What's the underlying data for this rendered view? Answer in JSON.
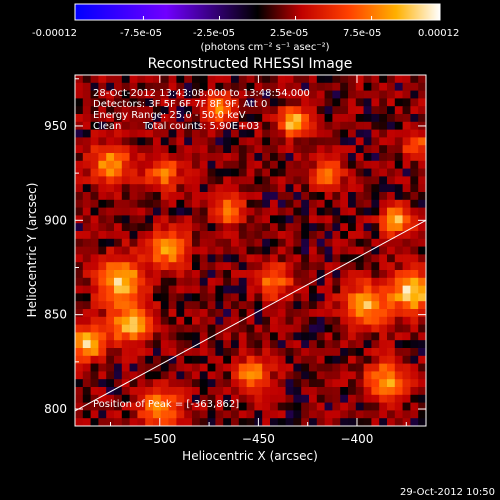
{
  "colorbar": {
    "tick_labels": [
      "-0.00012",
      "-7.5e-05",
      "-2.5e-05",
      "2.5e-05",
      "7.5e-05",
      "0.00012"
    ],
    "tick_values": [
      -0.00012,
      -7.5e-05,
      -2.5e-05,
      2.5e-05,
      7.5e-05,
      0.00012
    ],
    "unit_label": "(photons cm⁻² s⁻¹ asec⁻²)",
    "colors": [
      "#0000ff",
      "#8000ff",
      "#000000",
      "#c00000",
      "#ff4000",
      "#ffb000",
      "#ffffff"
    ]
  },
  "chart_data": {
    "type": "heatmap",
    "title": "Reconstructed RHESSI Image",
    "xlabel": "Heliocentric X (arcsec)",
    "ylabel": "Heliocentric Y (arcsec)",
    "xlim": [
      -543,
      -365
    ],
    "ylim": [
      791,
      977
    ],
    "x_ticks": [
      -500,
      -450,
      -400
    ],
    "x_tick_labels": [
      "−500",
      "−450",
      "−400"
    ],
    "y_ticks": [
      800,
      850,
      900,
      950
    ],
    "y_tick_labels": [
      "800",
      "850",
      "900",
      "950"
    ],
    "limb_line": [
      [
        -543,
        799
      ],
      [
        -365,
        900
      ]
    ],
    "peak": [
      -363,
      862
    ],
    "blobs": [
      {
        "x": -537,
        "y": 835,
        "amp": 0.95,
        "sigma": 6
      },
      {
        "x": -520,
        "y": 868,
        "amp": 0.9,
        "sigma": 8
      },
      {
        "x": -515,
        "y": 845,
        "amp": 0.85,
        "sigma": 7
      },
      {
        "x": -525,
        "y": 930,
        "amp": 0.75,
        "sigma": 7
      },
      {
        "x": -498,
        "y": 925,
        "amp": 0.6,
        "sigma": 6
      },
      {
        "x": -500,
        "y": 800,
        "amp": 0.75,
        "sigma": 7
      },
      {
        "x": -496,
        "y": 885,
        "amp": 0.75,
        "sigma": 7
      },
      {
        "x": -470,
        "y": 960,
        "amp": 0.7,
        "sigma": 5
      },
      {
        "x": -465,
        "y": 905,
        "amp": 0.8,
        "sigma": 5
      },
      {
        "x": -442,
        "y": 868,
        "amp": 0.65,
        "sigma": 6
      },
      {
        "x": -453,
        "y": 818,
        "amp": 0.7,
        "sigma": 6
      },
      {
        "x": -432,
        "y": 952,
        "amp": 0.9,
        "sigma": 5
      },
      {
        "x": -415,
        "y": 925,
        "amp": 0.7,
        "sigma": 5
      },
      {
        "x": -395,
        "y": 855,
        "amp": 0.8,
        "sigma": 8
      },
      {
        "x": -372,
        "y": 862,
        "amp": 1.0,
        "sigma": 7
      },
      {
        "x": -380,
        "y": 900,
        "amp": 0.9,
        "sigma": 5
      },
      {
        "x": -385,
        "y": 815,
        "amp": 0.75,
        "sigma": 7
      },
      {
        "x": -370,
        "y": 940,
        "amp": 0.55,
        "sigma": 5
      }
    ]
  },
  "info": {
    "time_range": "28-Oct-2012 13:43:08.000 to 13:48:54.000",
    "detectors": "Detectors: 3F 5F 6F 7F 8F 9F, Att 0",
    "energy_range": "Energy Range: 25.0 - 50.0 keV",
    "clean_label": "Clean",
    "total_counts": "Total counts: 5.90E+03",
    "peak_position": "Position of Peak = [-363,862]"
  },
  "footer": {
    "timestamp": "29-Oct-2012 10:50"
  }
}
